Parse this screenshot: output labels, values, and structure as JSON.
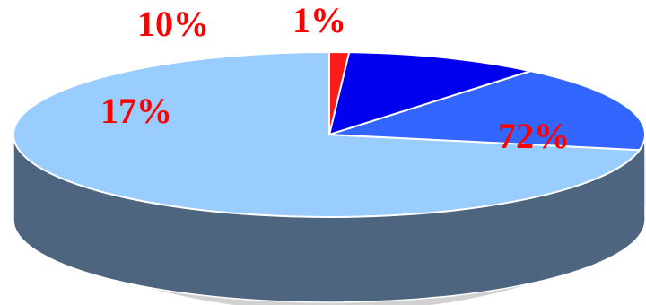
{
  "chart_data": {
    "type": "pie",
    "style": "3d",
    "slices": [
      {
        "label": "72%",
        "value": 72,
        "color": "#99ccff"
      },
      {
        "label": "17%",
        "value": 17,
        "color": "#3366ff"
      },
      {
        "label": "10%",
        "value": 10,
        "color": "#0000ee"
      },
      {
        "label": "1%",
        "value": 1,
        "color": "#ff1a1a"
      }
    ],
    "side_color": "#4e6580",
    "label_color": "#ff0000",
    "legend": "none"
  }
}
